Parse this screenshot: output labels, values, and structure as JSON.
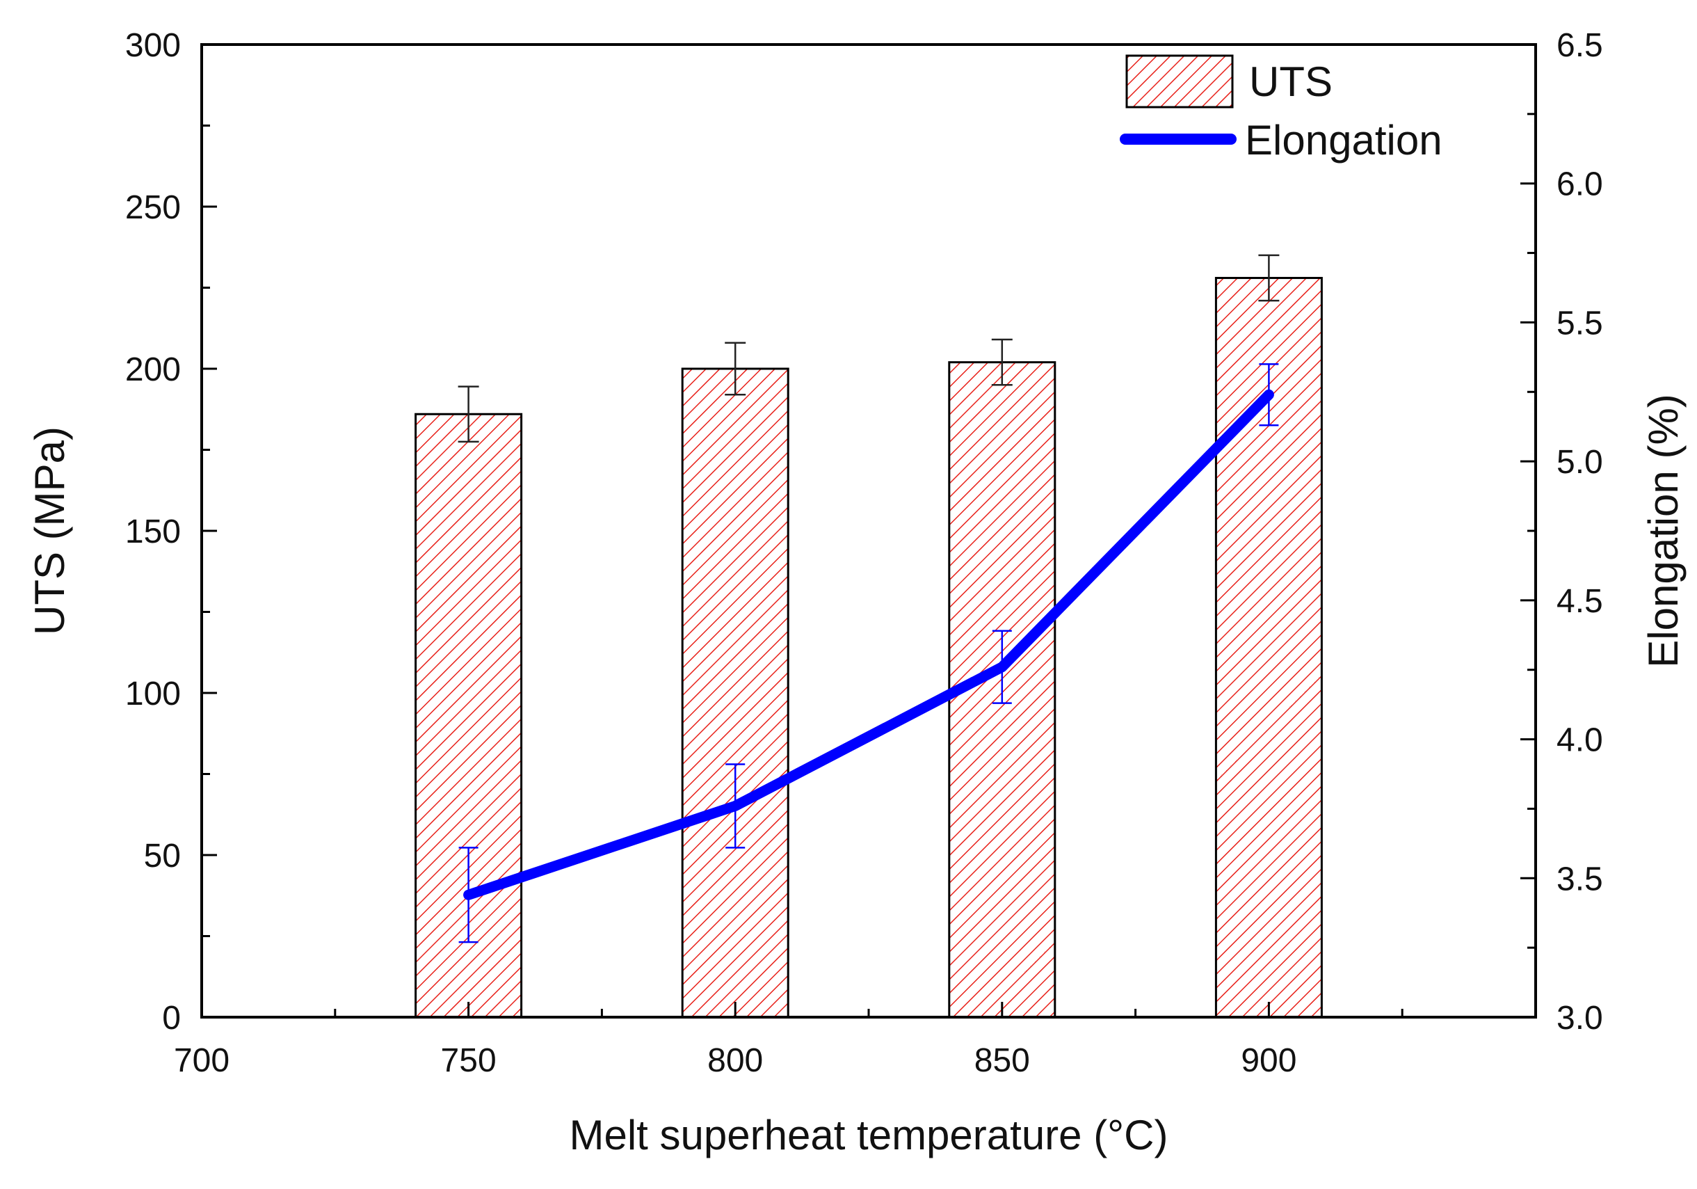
{
  "chart_data": {
    "type": "bar+line",
    "xlabel": "Melt superheat temperature (°C)",
    "ylabel_left": "UTS (MPa)",
    "ylabel_right": "Elongation (%)",
    "xlim": [
      700,
      950
    ],
    "xticks": [
      "700",
      "750",
      "800",
      "850",
      "900"
    ],
    "ylim_left": [
      0,
      300
    ],
    "yticks_left": [
      "0",
      "50",
      "100",
      "150",
      "200",
      "250",
      "300"
    ],
    "ylim_right": [
      3.0,
      6.5
    ],
    "yticks_right": [
      "3.0",
      "3.5",
      "4.0",
      "4.5",
      "5.0",
      "5.5",
      "6.0",
      "6.5"
    ],
    "x": [
      750,
      800,
      850,
      900
    ],
    "series": [
      {
        "name": "UTS",
        "type": "bar",
        "axis": "left",
        "values": [
          186,
          200,
          202,
          228
        ],
        "errors": [
          8.5,
          8,
          7,
          7
        ],
        "color": "#e8211a",
        "pattern": "diagonal-hatch"
      },
      {
        "name": "Elongation",
        "type": "line",
        "axis": "right",
        "values": [
          3.44,
          3.76,
          4.26,
          5.24
        ],
        "errors": [
          0.17,
          0.15,
          0.13,
          0.11
        ],
        "color": "#0000ff"
      }
    ],
    "legend_position": "top-right"
  }
}
